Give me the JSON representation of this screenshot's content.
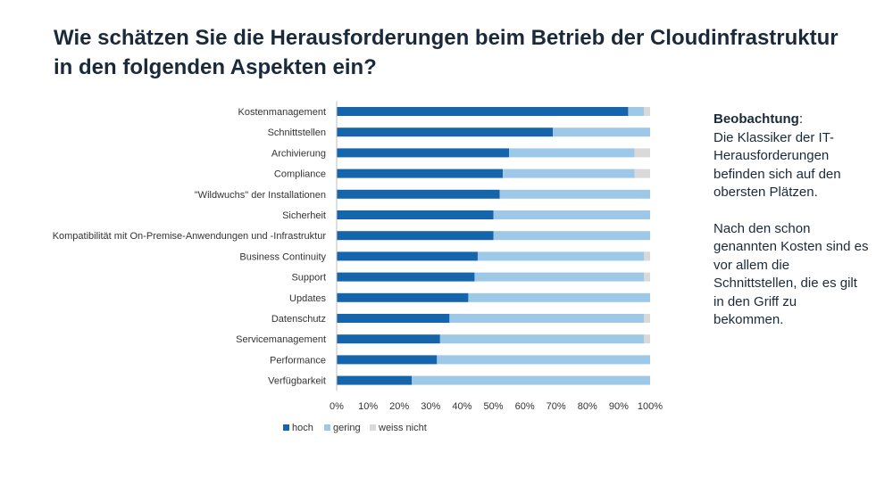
{
  "page": {
    "title": "Wie schätzen Sie die Herausforderungen beim Betrieb der Cloudinfrastruktur in den folgenden Aspekten ein?"
  },
  "observation": {
    "heading": "Beobachtung",
    "colon": ":",
    "text1": "Die Klassiker der IT-Herausforderungen befinden sich auf den obersten Plätzen.",
    "text2": "Nach den schon genannten Kosten sind es vor allem die Schnittstellen, die es gilt in den Griff zu bekommen."
  },
  "chart_data": {
    "type": "bar",
    "orientation": "horizontal",
    "stacking": "percent",
    "categories": [
      "Kostenmanagement",
      "Schnittstellen",
      "Archivierung",
      "Compliance",
      "\"Wildwuchs\" der Installationen",
      "Sicherheit",
      "Kompatibilität mit On-Premise-Anwendungen und -Infrastruktur",
      "Business Continuity",
      "Support",
      "Updates",
      "Datenschutz",
      "Servicemanagement",
      "Performance",
      "Verfügbarkeit"
    ],
    "series": [
      {
        "name": "hoch",
        "color": "#1565ad",
        "values": [
          93,
          69,
          55,
          53,
          52,
          50,
          50,
          45,
          44,
          42,
          36,
          33,
          32,
          24
        ]
      },
      {
        "name": "gering",
        "color": "#9dc8e8",
        "values": [
          5,
          31,
          40,
          42,
          48,
          50,
          50,
          53,
          54,
          58,
          62,
          65,
          68,
          76
        ]
      },
      {
        "name": "weiss nicht",
        "color": "#d9d9d9",
        "values": [
          2,
          0,
          5,
          5,
          0,
          0,
          0,
          2,
          2,
          0,
          2,
          2,
          0,
          0
        ]
      }
    ],
    "xticks": [
      "0%",
      "10%",
      "20%",
      "30%",
      "40%",
      "50%",
      "60%",
      "70%",
      "80%",
      "90%",
      "100%"
    ],
    "xlim": [
      0,
      100
    ],
    "grid": false,
    "legend": "bottom"
  }
}
